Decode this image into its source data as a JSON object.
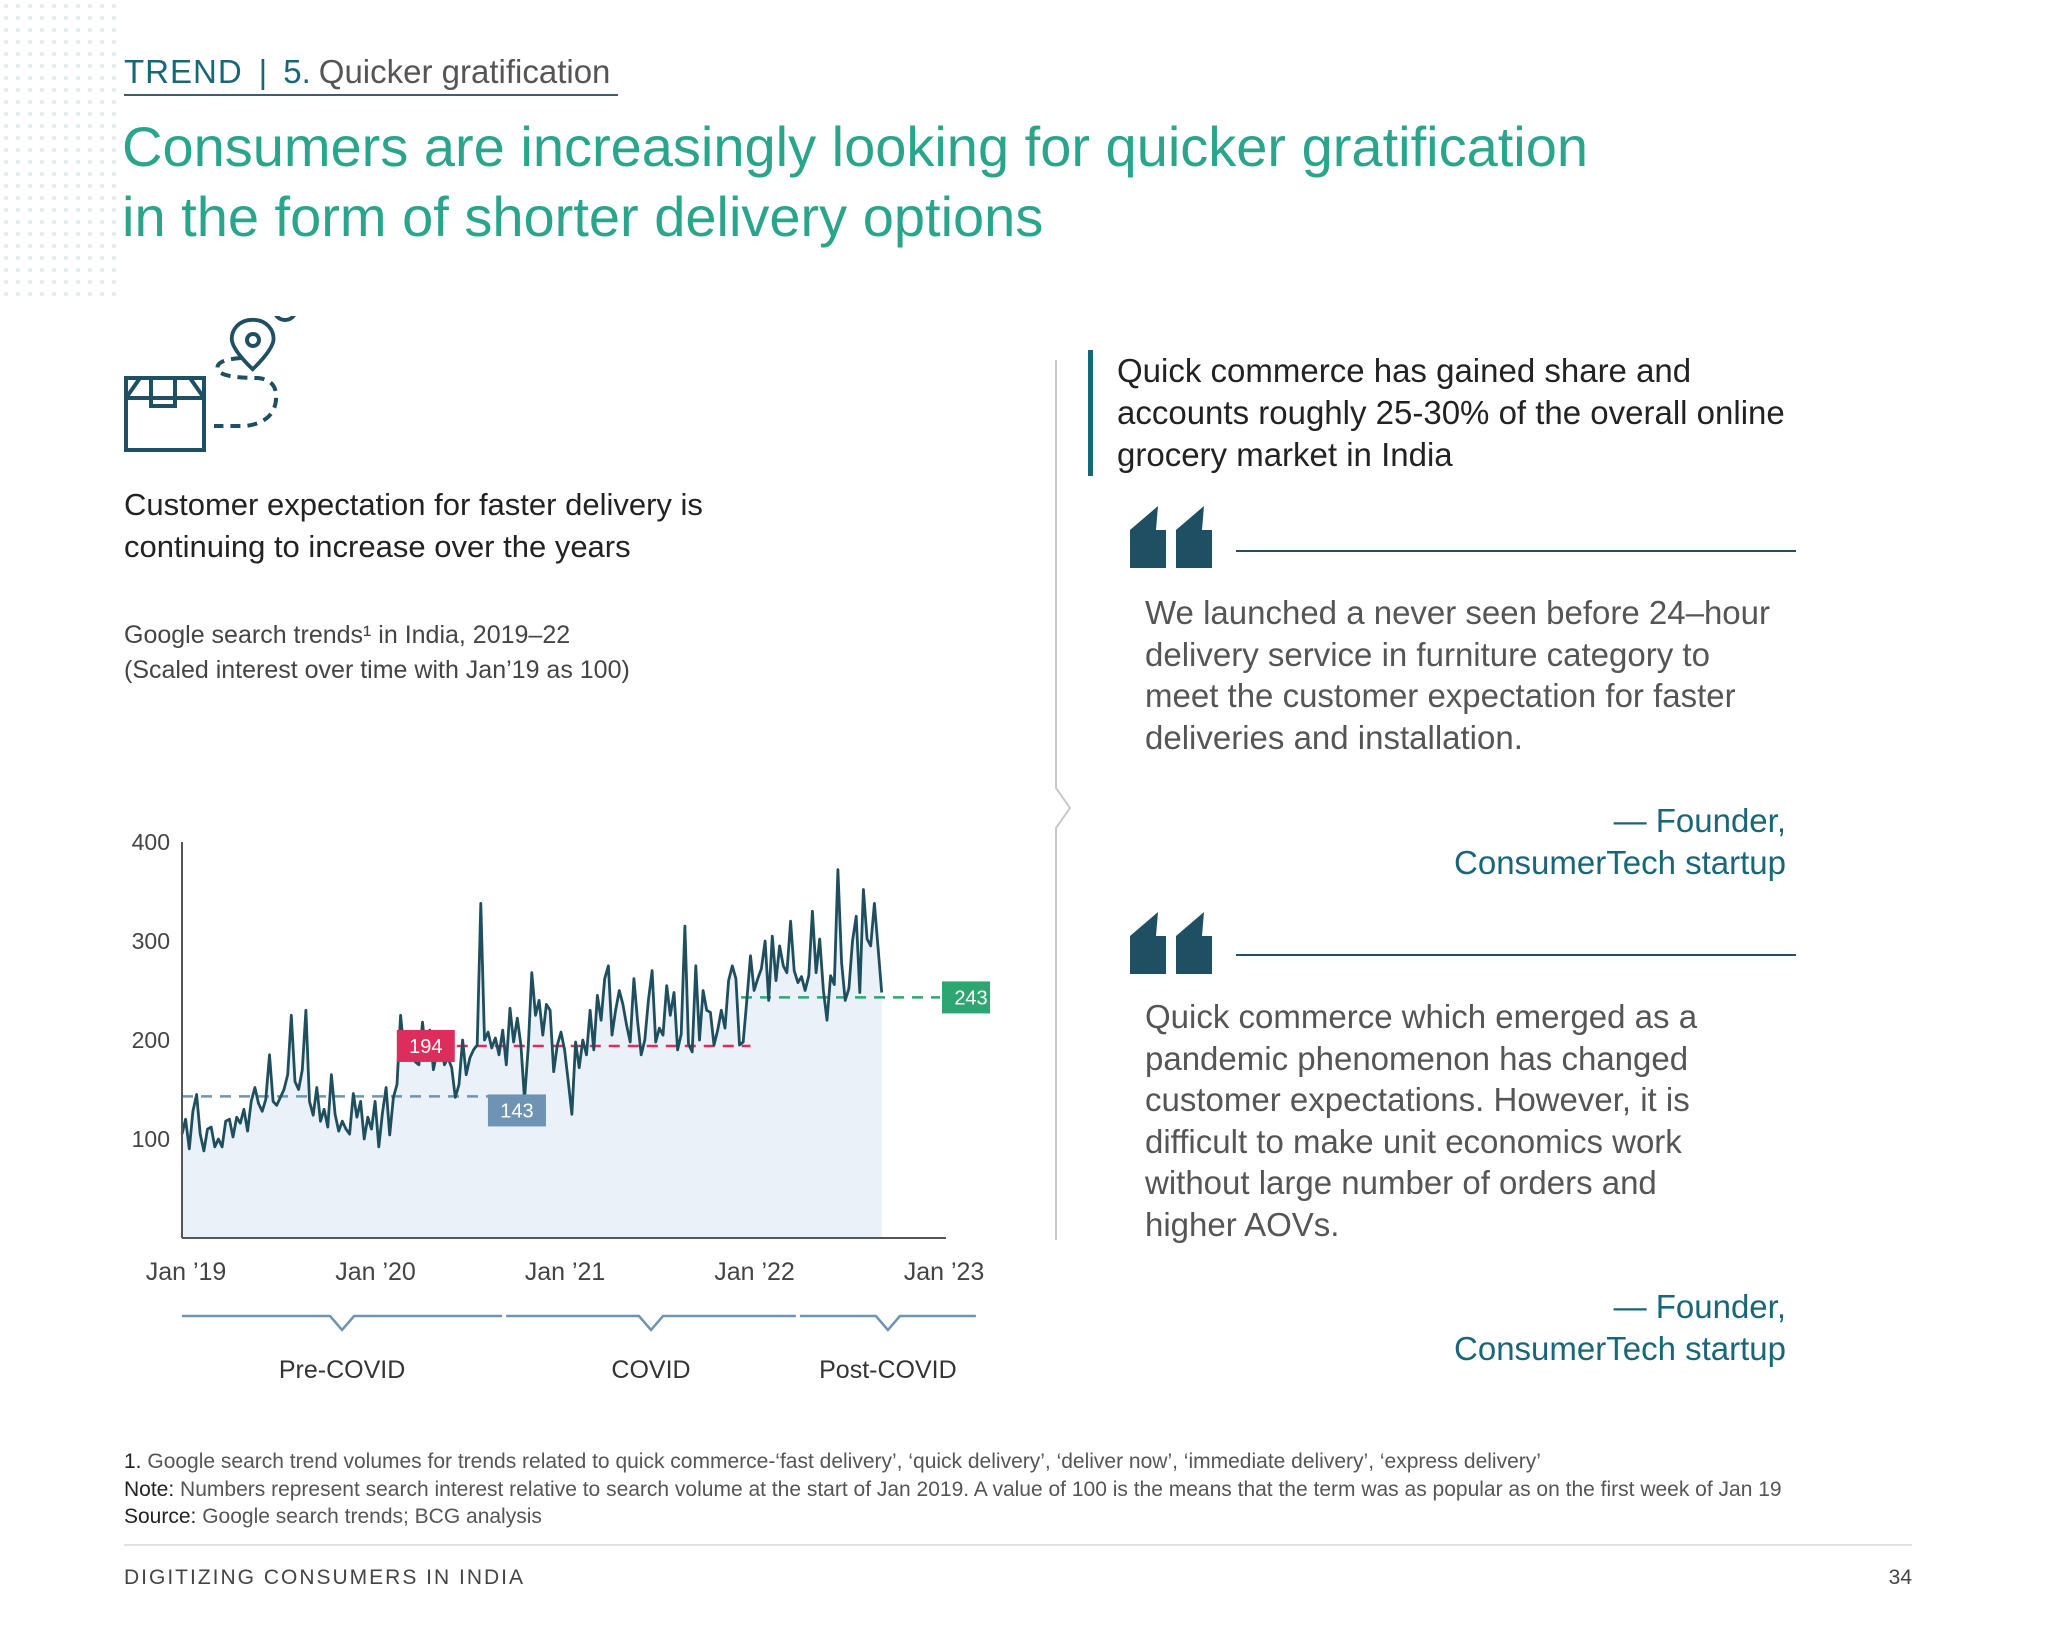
{
  "header": {
    "trend_label": "TREND",
    "separator": "|",
    "trend_number": "5.",
    "trend_topic": "Quicker gratification"
  },
  "headline_lines": [
    "Consumers are increasingly looking for quicker gratification",
    "in the form of shorter delivery options"
  ],
  "left": {
    "icon": "delivery-box-route-icon",
    "heading_lines": [
      "Customer expectation for faster delivery is",
      "continuing to increase over the years"
    ],
    "chart_title_lines": [
      "Google search trends¹ in India, 2019–22",
      "(Scaled interest over time with Jan’19 as 100)"
    ]
  },
  "chart_data": {
    "type": "area",
    "title": "Google search trends¹ in India, 2019–22",
    "subtitle": "(Scaled interest over time with Jan’19 as 100)",
    "ylim": [
      0,
      400
    ],
    "y_ticks": [
      100,
      200,
      300,
      400
    ],
    "x_range": [
      2019.0,
      2023.0
    ],
    "x_ticks": [
      {
        "x": 2019,
        "label": "Jan ’19"
      },
      {
        "x": 2020,
        "label": "Jan ’20"
      },
      {
        "x": 2021,
        "label": "Jan ’21"
      },
      {
        "x": 2022,
        "label": "Jan ’22"
      },
      {
        "x": 2023,
        "label": "Jan ’23"
      }
    ],
    "series": [
      {
        "x_start": 2019.0,
        "x_step": 0.01923,
        "values": [
          105,
          120,
          90,
          128,
          145,
          105,
          88,
          110,
          112,
          92,
          100,
          92,
          118,
          120,
          102,
          122,
          116,
          130,
          108,
          138,
          152,
          136,
          128,
          140,
          185,
          138,
          134,
          142,
          150,
          165,
          225,
          158,
          150,
          170,
          230,
          138,
          124,
          152,
          118,
          130,
          112,
          165,
          125,
          108,
          118,
          110,
          105,
          146,
          122,
          138,
          100,
          122,
          110,
          138,
          92,
          126,
          152,
          104,
          142,
          155,
          225,
          186,
          208,
          195,
          178,
          175,
          218,
          182,
          210,
          170,
          188,
          200,
          175,
          182,
          172,
          142,
          155,
          200,
          165,
          182,
          190,
          195,
          338,
          200,
          208,
          192,
          202,
          185,
          210,
          175,
          232,
          198,
          222,
          195,
          140,
          192,
          268,
          225,
          240,
          205,
          236,
          230,
          168,
          195,
          208,
          190,
          158,
          125,
          198,
          172,
          200,
          185,
          230,
          190,
          245,
          220,
          262,
          275,
          205,
          230,
          250,
          236,
          215,
          198,
          262,
          220,
          185,
          200,
          240,
          270,
          198,
          212,
          205,
          255,
          225,
          248,
          190,
          206,
          315,
          196,
          188,
          275,
          200,
          250,
          230,
          228,
          195,
          210,
          230,
          212,
          260,
          275,
          262,
          195,
          198,
          240,
          285,
          250,
          262,
          272,
          300,
          240,
          305,
          260,
          295,
          275,
          268,
          320,
          270,
          258,
          264,
          250,
          265,
          330,
          268,
          302,
          250,
          220,
          265,
          256,
          372,
          278,
          240,
          252,
          300,
          325,
          248,
          352,
          302,
          295,
          338,
          294,
          248
        ]
      }
    ],
    "reference_lines": [
      {
        "label": "143",
        "value": 143,
        "x_from": 2019.0,
        "x_to": 2020.7,
        "color": "#6f93b3",
        "style": "dashed"
      },
      {
        "label": "194",
        "value": 194,
        "x_from": 2020.45,
        "x_to": 2022.0,
        "color": "#dc2d5c",
        "style": "dashed"
      },
      {
        "label": "243",
        "value": 243,
        "x_from": 2021.95,
        "x_to": 2023.0,
        "color": "#2ea672",
        "style": "dashed"
      }
    ],
    "phases": [
      {
        "label": "Pre-COVID",
        "x_from": 2019.0,
        "x_to": 2020.7
      },
      {
        "label": "COVID",
        "x_from": 2020.7,
        "x_to": 2022.25
      },
      {
        "label": "Post-COVID",
        "x_from": 2022.25,
        "x_to": 2023.2
      }
    ],
    "colors": {
      "line": "#1f4f5f",
      "area": "#eaf1f8",
      "axis": "#555555"
    }
  },
  "right": {
    "stat_lines": [
      "Quick commerce has gained share and",
      "accounts roughly 25-30% of the overall online",
      "grocery market in India"
    ],
    "quotes": [
      {
        "text_lines": [
          "We launched a never seen before 24–hour",
          "delivery service in furniture category to",
          "meet the customer expectation for faster",
          "deliveries and installation."
        ],
        "attribution_lines": [
          "— Founder,",
          "ConsumerTech startup"
        ]
      },
      {
        "text_lines": [
          "Quick commerce which emerged as a",
          "pandemic phenomenon has changed",
          "customer expectations. However, it is",
          "difficult to make unit economics work",
          "without large number of orders and",
          "higher AOVs."
        ],
        "attribution_lines": [
          "— Founder,",
          "ConsumerTech startup"
        ]
      }
    ]
  },
  "notes": [
    {
      "marker": "1.",
      "text": "Google search trend volumes for trends related to quick commerce-‘fast delivery’, ‘quick delivery’, ‘deliver now’, ‘immediate delivery’, ‘express delivery’"
    },
    {
      "marker": "Note:",
      "text": "Numbers represent search interest relative to search volume at the start of Jan 2019. A value of 100 is the means that the term was as popular as on the first week of Jan 19"
    },
    {
      "marker": "Source:",
      "text": "Google search trends; BCG analysis"
    }
  ],
  "footer": {
    "title": "DIGITIZING CONSUMERS IN INDIA",
    "page": "34"
  },
  "colors": {
    "teal": "#2aa58c",
    "dark_teal": "#1a6679",
    "navy": "#1f4f63"
  }
}
